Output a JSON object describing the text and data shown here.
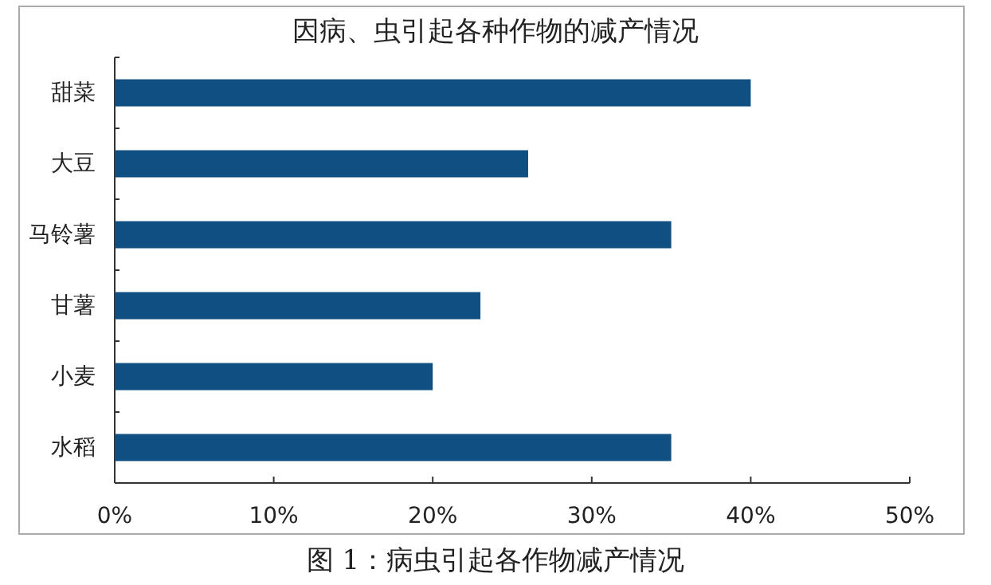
{
  "chart_data": {
    "type": "bar",
    "orientation": "horizontal",
    "title": "因病、虫引起各种作物的减产情况",
    "categories": [
      "甜菜",
      "大豆",
      "马铃薯",
      "甘薯",
      "小麦",
      "水稻"
    ],
    "values": [
      40,
      26,
      35,
      23,
      20,
      35
    ],
    "color": "#0f4f82",
    "xlim": [
      0,
      50
    ],
    "xticks": [
      {
        "value": 0,
        "label": "0%"
      },
      {
        "value": 10,
        "label": "10%"
      },
      {
        "value": 20,
        "label": "20%"
      },
      {
        "value": 30,
        "label": "30%"
      },
      {
        "value": 40,
        "label": "40%"
      },
      {
        "value": 50,
        "label": "50%"
      }
    ],
    "grid": false,
    "annotations": [
      "图 1：病虫引起各作物减产情况"
    ]
  }
}
